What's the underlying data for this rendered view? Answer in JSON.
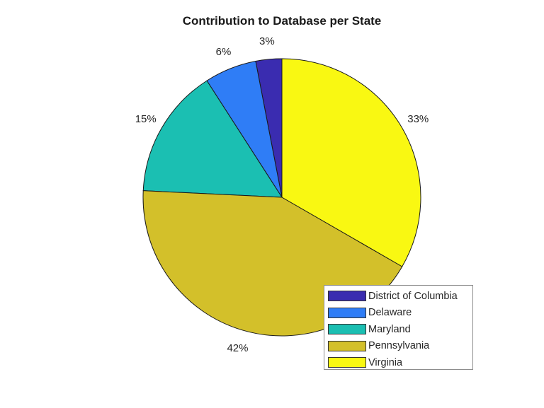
{
  "chart_data": {
    "type": "pie",
    "title": "Contribution to Database per State",
    "categories": [
      "District of Columbia",
      "Delaware",
      "Maryland",
      "Pennsylvania",
      "Virginia"
    ],
    "values": [
      3,
      6,
      15,
      42,
      33
    ],
    "labels": [
      "3%",
      "6%",
      "15%",
      "42%",
      "33%"
    ],
    "colors": [
      "#3a2cb0",
      "#2f7df6",
      "#1bbfb2",
      "#d3c02a",
      "#f9f812"
    ],
    "legend_position": "lower right",
    "start_angle": "top (90°)",
    "direction": "counterclockwise"
  },
  "legend": {
    "items": [
      {
        "label": "District of Columbia",
        "color": "#3a2cb0"
      },
      {
        "label": "Delaware",
        "color": "#2f7df6"
      },
      {
        "label": "Maryland",
        "color": "#1bbfb2"
      },
      {
        "label": "Pennsylvania",
        "color": "#d3c02a"
      },
      {
        "label": "Virginia",
        "color": "#f9f812"
      }
    ]
  }
}
